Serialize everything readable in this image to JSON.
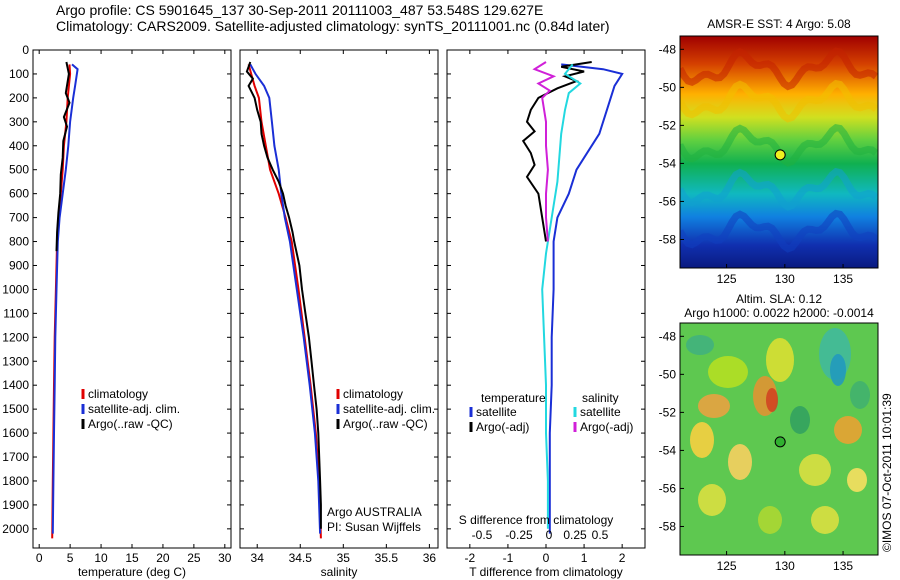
{
  "header": {
    "line1": "Argo profile: CS 5901645_137 30-Sep-2011 20111003_487 53.548S 129.627E",
    "line2": "Climatology: CARS2009. Satellite-adjusted climatology: synTS_20111001.nc (0.84d later)"
  },
  "colors": {
    "climatology": "#e00000",
    "satellite": "#1a2fd6",
    "argo": "#000000",
    "satellite_s": "#22d8e0",
    "argo_s": "#d020d8"
  },
  "y_axis": {
    "ticks": [
      0,
      100,
      200,
      300,
      400,
      500,
      600,
      700,
      800,
      900,
      1000,
      1100,
      1200,
      1300,
      1400,
      1500,
      1600,
      1700,
      1800,
      1900,
      2000
    ],
    "range": [
      0,
      2080
    ]
  },
  "chart_data": [
    {
      "type": "line",
      "name": "temperature",
      "xlabel": "temperature (deg C)",
      "xlim": [
        -1,
        31
      ],
      "xticks": [
        0,
        5,
        10,
        15,
        20,
        25,
        30
      ],
      "legend": [
        "climatology",
        "satellite-adj. clim.",
        "Argo(..raw -QC)"
      ],
      "series": [
        {
          "name": "climatology",
          "color": "#e00000",
          "points": [
            [
              4.9,
              60
            ],
            [
              5.0,
              100
            ],
            [
              4.6,
              200
            ],
            [
              4.4,
              300
            ],
            [
              4.0,
              400
            ],
            [
              3.8,
              500
            ],
            [
              3.5,
              600
            ],
            [
              3.2,
              700
            ],
            [
              2.9,
              800
            ],
            [
              2.7,
              1000
            ],
            [
              2.5,
              1200
            ],
            [
              2.4,
              1400
            ],
            [
              2.3,
              1600
            ],
            [
              2.2,
              1800
            ],
            [
              2.1,
              2040
            ]
          ]
        },
        {
          "name": "satellite-adj. clim.",
          "color": "#1a2fd6",
          "points": [
            [
              5.3,
              60
            ],
            [
              6.2,
              80
            ],
            [
              5.8,
              150
            ],
            [
              5.5,
              200
            ],
            [
              5.0,
              300
            ],
            [
              4.7,
              400
            ],
            [
              4.3,
              500
            ],
            [
              3.8,
              600
            ],
            [
              3.3,
              700
            ],
            [
              3.0,
              800
            ],
            [
              2.8,
              1000
            ],
            [
              2.6,
              1200
            ],
            [
              2.5,
              1400
            ],
            [
              2.4,
              1600
            ],
            [
              2.3,
              1800
            ],
            [
              2.2,
              2020
            ]
          ]
        },
        {
          "name": "Argo(..raw -QC)",
          "color": "#000000",
          "points": [
            [
              4.4,
              50
            ],
            [
              4.8,
              100
            ],
            [
              4.3,
              180
            ],
            [
              4.9,
              220
            ],
            [
              4.0,
              280
            ],
            [
              4.5,
              320
            ],
            [
              3.9,
              380
            ],
            [
              3.8,
              450
            ],
            [
              3.5,
              520
            ],
            [
              3.4,
              600
            ],
            [
              3.1,
              680
            ],
            [
              2.9,
              760
            ],
            [
              2.8,
              840
            ]
          ]
        }
      ]
    },
    {
      "type": "line",
      "name": "salinity",
      "xlabel": "salinity",
      "xlim": [
        33.8,
        36.1
      ],
      "xticks": [
        34,
        34.5,
        35,
        35.5,
        36
      ],
      "legend": [
        "climatology",
        "satellite-adj. clim.",
        "Argo(..raw -QC)"
      ],
      "note": [
        "Argo AUSTRALIA",
        "PI: Susan Wijffels"
      ],
      "series": [
        {
          "name": "climatology",
          "color": "#e00000",
          "points": [
            [
              33.9,
              60
            ],
            [
              33.93,
              100
            ],
            [
              33.97,
              150
            ],
            [
              34.02,
              200
            ],
            [
              34.05,
              300
            ],
            [
              34.1,
              400
            ],
            [
              34.15,
              500
            ],
            [
              34.25,
              600
            ],
            [
              34.33,
              700
            ],
            [
              34.4,
              800
            ],
            [
              34.48,
              1000
            ],
            [
              34.55,
              1200
            ],
            [
              34.62,
              1400
            ],
            [
              34.68,
              1600
            ],
            [
              34.72,
              1800
            ],
            [
              34.74,
              2040
            ]
          ]
        },
        {
          "name": "satellite-adj. clim.",
          "color": "#1a2fd6",
          "points": [
            [
              33.92,
              60
            ],
            [
              33.95,
              80
            ],
            [
              33.98,
              100
            ],
            [
              34.08,
              150
            ],
            [
              34.14,
              200
            ],
            [
              34.17,
              300
            ],
            [
              34.2,
              400
            ],
            [
              34.25,
              500
            ],
            [
              34.28,
              600
            ],
            [
              34.32,
              700
            ],
            [
              34.38,
              800
            ],
            [
              34.46,
              1000
            ],
            [
              34.54,
              1200
            ],
            [
              34.61,
              1400
            ],
            [
              34.67,
              1600
            ],
            [
              34.71,
              1800
            ],
            [
              34.73,
              2020
            ]
          ]
        },
        {
          "name": "Argo(..raw -QC)",
          "color": "#000000",
          "points": [
            [
              33.92,
              50
            ],
            [
              33.88,
              90
            ],
            [
              33.95,
              120
            ],
            [
              33.9,
              150
            ],
            [
              33.97,
              200
            ],
            [
              34.0,
              250
            ],
            [
              34.04,
              300
            ],
            [
              34.05,
              350
            ],
            [
              34.08,
              400
            ],
            [
              34.12,
              450
            ],
            [
              34.18,
              500
            ],
            [
              34.25,
              550
            ],
            [
              34.3,
              600
            ],
            [
              34.33,
              650
            ],
            [
              34.37,
              700
            ],
            [
              34.41,
              760
            ],
            [
              34.43,
              800
            ],
            [
              34.49,
              900
            ],
            [
              34.52,
              1000
            ],
            [
              34.56,
              1100
            ],
            [
              34.6,
              1200
            ],
            [
              34.63,
              1300
            ],
            [
              34.66,
              1400
            ],
            [
              34.69,
              1500
            ],
            [
              34.71,
              1600
            ],
            [
              34.72,
              1700
            ],
            [
              34.73,
              1800
            ],
            [
              34.74,
              1900
            ],
            [
              34.74,
              2000
            ]
          ]
        }
      ]
    },
    {
      "type": "line",
      "name": "difference",
      "xlabel": "T difference from climatology",
      "xlim": [
        -2.6,
        2.6
      ],
      "xticks": [
        -2,
        -1,
        0,
        1,
        2
      ],
      "x2label": "S difference from climatology",
      "x2ticks": [
        "-0.5",
        "-0.25",
        "0",
        "0.25",
        "0.5"
      ],
      "legend_t": {
        "title": "temperature",
        "items": [
          "satellite",
          "Argo(-adj)"
        ]
      },
      "legend_s": {
        "title": "salinity",
        "items": [
          "satellite",
          "Argo(-adj)"
        ]
      },
      "series": [
        {
          "name": "T satellite",
          "color": "#1a2fd6",
          "points": [
            [
              0.4,
              60
            ],
            [
              1.5,
              80
            ],
            [
              2.0,
              100
            ],
            [
              1.8,
              150
            ],
            [
              1.6,
              250
            ],
            [
              1.4,
              350
            ],
            [
              1.0,
              450
            ],
            [
              0.8,
              500
            ],
            [
              0.6,
              600
            ],
            [
              0.3,
              700
            ],
            [
              0.2,
              800
            ],
            [
              0.2,
              1000
            ],
            [
              0.15,
              1200
            ],
            [
              0.15,
              1400
            ],
            [
              0.1,
              1600
            ],
            [
              0.1,
              1800
            ],
            [
              0.1,
              2020
            ]
          ]
        },
        {
          "name": "T Argo(-adj)",
          "color": "#000000",
          "points": [
            [
              1.2,
              50
            ],
            [
              0.4,
              70
            ],
            [
              1.0,
              90
            ],
            [
              0.5,
              110
            ],
            [
              0.8,
              130
            ],
            [
              0.3,
              160
            ],
            [
              -0.2,
              200
            ],
            [
              -0.4,
              250
            ],
            [
              -0.5,
              300
            ],
            [
              -0.3,
              340
            ],
            [
              -0.6,
              380
            ],
            [
              -0.4,
              430
            ],
            [
              -0.3,
              480
            ],
            [
              -0.5,
              530
            ],
            [
              -0.2,
              600
            ],
            [
              -0.1,
              700
            ],
            [
              0.0,
              800
            ]
          ]
        },
        {
          "name": "S satellite",
          "color": "#22d8e0",
          "points": [
            [
              0.7,
              60
            ],
            [
              0.5,
              100
            ],
            [
              0.9,
              140
            ],
            [
              0.6,
              180
            ],
            [
              0.5,
              250
            ],
            [
              0.4,
              350
            ],
            [
              0.35,
              450
            ],
            [
              0.3,
              550
            ],
            [
              0.2,
              650
            ],
            [
              0.1,
              750
            ],
            [
              0.0,
              850
            ],
            [
              -0.1,
              1000
            ],
            [
              -0.05,
              1200
            ],
            [
              0.0,
              1400
            ],
            [
              0.0,
              1600
            ],
            [
              0.05,
              1800
            ],
            [
              0.05,
              2000
            ]
          ]
        },
        {
          "name": "S Argo(-adj)",
          "color": "#d020d8",
          "points": [
            [
              0.0,
              50
            ],
            [
              -0.3,
              80
            ],
            [
              0.2,
              110
            ],
            [
              -0.2,
              140
            ],
            [
              0.1,
              170
            ],
            [
              -0.1,
              200
            ],
            [
              0.0,
              300
            ],
            [
              0.0,
              400
            ],
            [
              0.05,
              500
            ],
            [
              0.0,
              600
            ],
            [
              0.0,
              700
            ],
            [
              0.05,
              800
            ]
          ]
        }
      ]
    }
  ],
  "map_sst": {
    "title": "AMSR-E SST: 4 Argo: 5.08",
    "xticks": [
      "125",
      "130",
      "135"
    ],
    "yticks": [
      "-48",
      "-50",
      "-52",
      "-54",
      "-56",
      "-58"
    ],
    "float_lon": 129.6,
    "float_lat": -53.55
  },
  "map_sla": {
    "title1": "Altim. SLA: 0.12",
    "title2": "Argo h1000: 0.0022 h2000: -0.0014",
    "xticks": [
      "125",
      "130",
      "135"
    ],
    "yticks": [
      "-48",
      "-50",
      "-52",
      "-54",
      "-56",
      "-58"
    ],
    "float_lon": 129.6,
    "float_lat": -53.55
  },
  "credit": "©IMOS 07-Oct-2011 10:01:39"
}
